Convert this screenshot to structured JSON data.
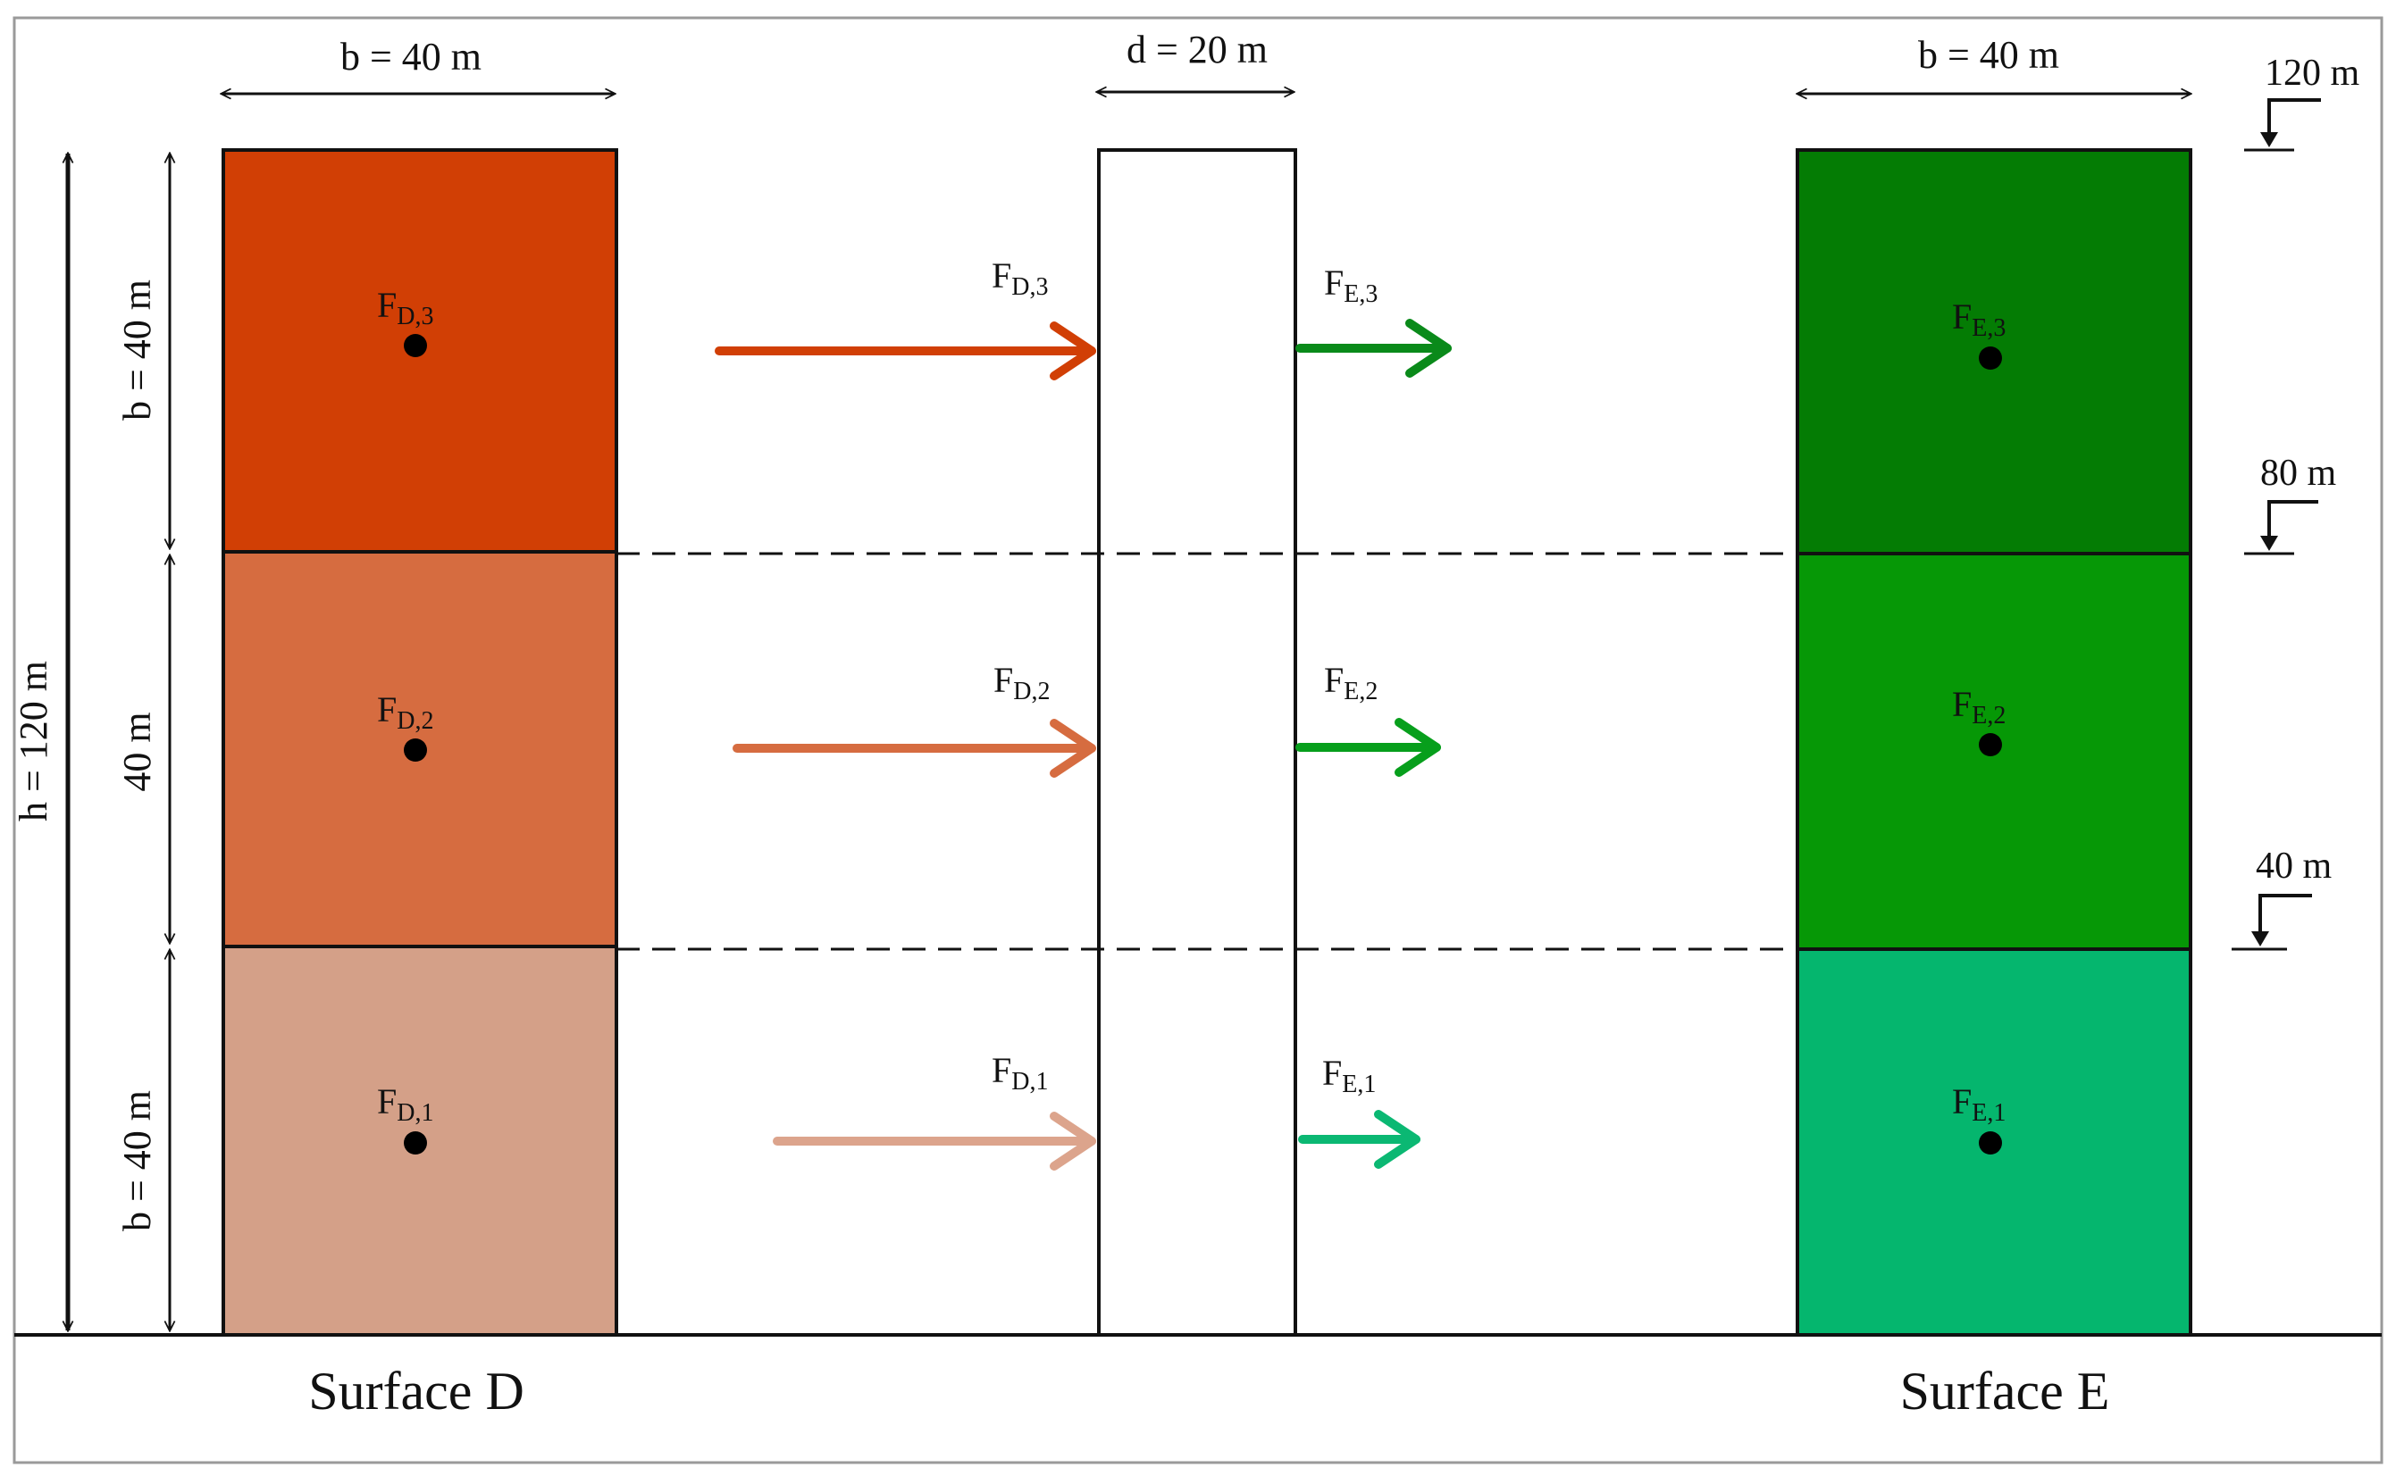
{
  "surfaces": {
    "d": {
      "label": "Surface D",
      "width_label": "b = 40 m",
      "segments": [
        {
          "force_base": "F",
          "force_sub": "D,3",
          "color": "#d13f05"
        },
        {
          "force_base": "F",
          "force_sub": "D,2",
          "color": "#d66c40"
        },
        {
          "force_base": "F",
          "force_sub": "D,1",
          "color": "#d4a088"
        }
      ]
    },
    "e": {
      "label": "Surface E",
      "width_label": "b = 40 m",
      "segments": [
        {
          "force_base": "F",
          "force_sub": "E,3",
          "color": "#047c04"
        },
        {
          "force_base": "F",
          "force_sub": "E,2",
          "color": "#069806"
        },
        {
          "force_base": "F",
          "force_sub": "E,1",
          "color": "#05b66e"
        }
      ]
    }
  },
  "building": {
    "depth_label": "d = 20 m"
  },
  "height_label": "h = 120 m",
  "segment_labels": {
    "top": "b = 40 m",
    "middle": "40 m",
    "bottom": "b = 40 m"
  },
  "level_markers": [
    "120 m",
    "80 m",
    "40 m"
  ],
  "arrows": {
    "d": [
      {
        "label_base": "F",
        "label_sub": "D,3",
        "color": "#d13f05"
      },
      {
        "label_base": "F",
        "label_sub": "D,2",
        "color": "#d66c40"
      },
      {
        "label_base": "F",
        "label_sub": "D,1",
        "color": "#dca48c"
      }
    ],
    "e": [
      {
        "label_base": "F",
        "label_sub": "E,3",
        "color": "#0a8a1a"
      },
      {
        "label_base": "F",
        "label_sub": "E,2",
        "color": "#079f1c"
      },
      {
        "label_base": "F",
        "label_sub": "E,1",
        "color": "#0bb873"
      }
    ]
  }
}
